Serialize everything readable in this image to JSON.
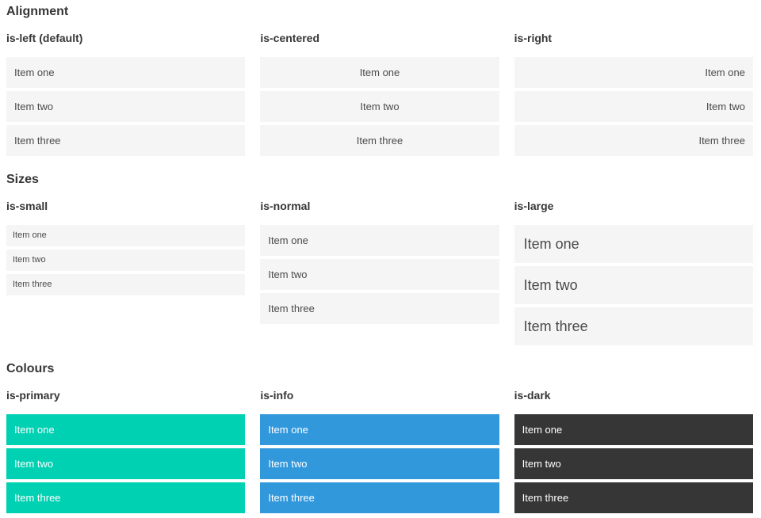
{
  "colors": {
    "primary": "#00d1b2",
    "info": "#3298dc",
    "dark": "#363636",
    "item_background": "#f5f5f5",
    "item_text": "#4a4a4a",
    "heading_text": "#363636",
    "page_background": "#ffffff"
  },
  "sections": [
    {
      "title": "Alignment",
      "variants": [
        {
          "label": "is-left (default)",
          "items": [
            "Item one",
            "Item two",
            "Item three"
          ]
        },
        {
          "label": "is-centered",
          "items": [
            "Item one",
            "Item two",
            "Item three"
          ]
        },
        {
          "label": "is-right",
          "items": [
            "Item one",
            "Item two",
            "Item three"
          ]
        }
      ]
    },
    {
      "title": "Sizes",
      "variants": [
        {
          "label": "is-small",
          "items": [
            "Item one",
            "Item two",
            "Item three"
          ]
        },
        {
          "label": "is-normal",
          "items": [
            "Item one",
            "Item two",
            "Item three"
          ]
        },
        {
          "label": "is-large",
          "items": [
            "Item one",
            "Item two",
            "Item three"
          ]
        }
      ]
    },
    {
      "title": "Colours",
      "variants": [
        {
          "label": "is-primary",
          "items": [
            "Item one",
            "Item two",
            "Item three"
          ]
        },
        {
          "label": "is-info",
          "items": [
            "Item one",
            "Item two",
            "Item three"
          ]
        },
        {
          "label": "is-dark",
          "items": [
            "Item one",
            "Item two",
            "Item three"
          ]
        }
      ]
    }
  ]
}
